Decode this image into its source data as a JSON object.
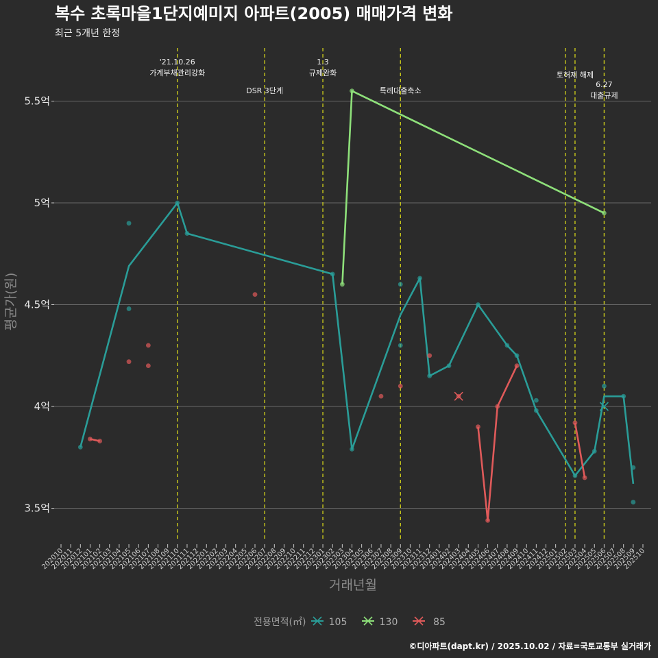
{
  "header": {
    "title": "복수 초록마을1단지예미지 아파트(2005) 매매가격 변화",
    "subtitle": "최근 5개년 한정"
  },
  "caption": "©디아파트(dapt.kr) / 2025.10.02 / 자료=국토교통부 실거래가",
  "colors": {
    "s105": "#2a9d98",
    "s130": "#8ee07a",
    "s85": "#e05a5a",
    "vline": "#d4d41a",
    "grid": "#6a6a6a"
  },
  "chart_data": {
    "type": "line",
    "title": "복수 초록마을1단지예미지 아파트(2005) 매매가격 변화",
    "xlabel": "거래년월",
    "ylabel": "평균가(원)",
    "ylim": [
      3.33,
      5.75
    ],
    "yticks": [
      3.5,
      4.0,
      4.5,
      5.0,
      5.5
    ],
    "ytick_labels": [
      "3.5억",
      "4억",
      "4.5억",
      "5억",
      "5.5억"
    ],
    "x_categories": [
      "202010",
      "202011",
      "202012",
      "202101",
      "202102",
      "202103",
      "202104",
      "202105",
      "202106",
      "202107",
      "202108",
      "202109",
      "202110",
      "202111",
      "202112",
      "202201",
      "202202",
      "202203",
      "202204",
      "202205",
      "202206",
      "202207",
      "202208",
      "202209",
      "202210",
      "202211",
      "202212",
      "202301",
      "202302",
      "202303",
      "202304",
      "202305",
      "202306",
      "202307",
      "202308",
      "202309",
      "202310",
      "202311",
      "202312",
      "202401",
      "202402",
      "202403",
      "202404",
      "202405",
      "202406",
      "202407",
      "202408",
      "202409",
      "202410",
      "202411",
      "202412",
      "202501",
      "202502",
      "202503",
      "202504",
      "202505",
      "202506",
      "202507",
      "202508",
      "202509",
      "202510"
    ],
    "legend": {
      "title": "전용면적(㎡)",
      "items": [
        "105",
        "130",
        "85"
      ]
    },
    "series": [
      {
        "name": "105",
        "line": [
          [
            "202012",
            3.8
          ],
          [
            "202105",
            4.69
          ],
          [
            "202110",
            5.0
          ],
          [
            "202111",
            4.85
          ],
          [
            "202302",
            4.65
          ],
          [
            "202304",
            3.79
          ],
          [
            "202309",
            4.45
          ],
          [
            "202311",
            4.63
          ],
          [
            "202312",
            4.15
          ],
          [
            "202402",
            4.2
          ],
          [
            "202405",
            4.5
          ],
          [
            "202408",
            4.3
          ],
          [
            "202409",
            4.25
          ],
          [
            "202411",
            3.98
          ],
          [
            "202503",
            3.66
          ],
          [
            "202505",
            3.78
          ],
          [
            "202506",
            4.05
          ],
          [
            "202508",
            4.05
          ],
          [
            "202509",
            3.62
          ]
        ],
        "points": [
          [
            "202012",
            3.8
          ],
          [
            "202105",
            4.9
          ],
          [
            "202105",
            4.48
          ],
          [
            "202110",
            5.0
          ],
          [
            "202111",
            4.85
          ],
          [
            "202302",
            4.65
          ],
          [
            "202304",
            3.79
          ],
          [
            "202309",
            4.6
          ],
          [
            "202309",
            4.3
          ],
          [
            "202311",
            4.63
          ],
          [
            "202312",
            4.15
          ],
          [
            "202402",
            4.2
          ],
          [
            "202405",
            4.5
          ],
          [
            "202408",
            4.3
          ],
          [
            "202409",
            4.25
          ],
          [
            "202411",
            4.03
          ],
          [
            "202411",
            3.98
          ],
          [
            "202503",
            3.66
          ],
          [
            "202505",
            3.78
          ],
          [
            "202506",
            4.1
          ],
          [
            "202508",
            4.05
          ],
          [
            "202509",
            3.7
          ],
          [
            "202509",
            3.53
          ]
        ]
      },
      {
        "name": "130",
        "line": [
          [
            "202303",
            4.6
          ],
          [
            "202304",
            5.55
          ],
          [
            "202506",
            4.95
          ]
        ],
        "points": [
          [
            "202303",
            4.6
          ],
          [
            "202304",
            5.55
          ],
          [
            "202506",
            4.95
          ]
        ]
      },
      {
        "name": "85",
        "line": [
          [
            "202405",
            3.9
          ],
          [
            "202406",
            3.44
          ],
          [
            "202407",
            4.0
          ],
          [
            "202409",
            4.2
          ]
        ],
        "points": [
          [
            "202101",
            3.84
          ],
          [
            "202102",
            3.83
          ],
          [
            "202105",
            4.22
          ],
          [
            "202107",
            4.3
          ],
          [
            "202107",
            4.2
          ],
          [
            "202206",
            4.55
          ],
          [
            "202307",
            4.05
          ],
          [
            "202309",
            4.1
          ],
          [
            "202312",
            4.25
          ],
          [
            "202403",
            4.05
          ],
          [
            "202405",
            3.9
          ],
          [
            "202406",
            3.44
          ],
          [
            "202407",
            4.0
          ],
          [
            "202409",
            4.2
          ],
          [
            "202503",
            3.92
          ],
          [
            "202504",
            3.65
          ]
        ]
      },
      {
        "name": "85-early",
        "line": [
          [
            "202101",
            3.84
          ],
          [
            "202102",
            3.83
          ]
        ],
        "points": []
      },
      {
        "name": "85-late",
        "line": [
          [
            "202503",
            3.92
          ],
          [
            "202504",
            3.65
          ]
        ],
        "points": []
      }
    ],
    "crosses": [
      [
        "85",
        "202403",
        4.05
      ],
      [
        "105",
        "202506",
        4.0
      ]
    ],
    "events": [
      {
        "x": "202110",
        "lines": [
          "'21.10.26",
          "가계부채관리강화"
        ],
        "row": 0
      },
      {
        "x": "202207",
        "lines": [
          "DSR 3단계"
        ],
        "row": 2
      },
      {
        "x": "202301",
        "lines": [
          "1.3",
          "규제완화"
        ],
        "row": 0
      },
      {
        "x": "202309",
        "lines": [
          "특례대출축소"
        ],
        "row": 2
      },
      {
        "x": "202502",
        "lines": [],
        "row": 0
      },
      {
        "x": "202503",
        "lines": [
          "토허제 해제"
        ],
        "row": 1
      },
      {
        "x": "202506",
        "lines": [
          "6.27",
          "대출규제"
        ],
        "row": 3
      }
    ]
  }
}
